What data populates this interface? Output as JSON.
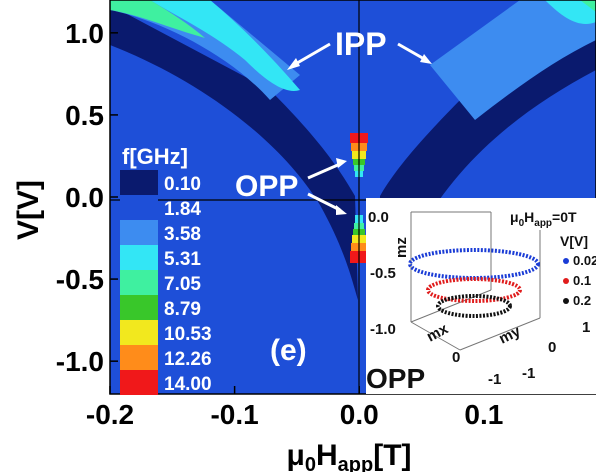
{
  "chart_data": {
    "type": "heatmap",
    "xlabel": "μ0Happ[T]",
    "ylabel": "V[V]",
    "xlim": [
      -0.2,
      0.19
    ],
    "ylim": [
      -1.2,
      1.2
    ],
    "x_ticks": [
      "-0.2",
      "-0.1",
      "0.0",
      "0.1"
    ],
    "y_ticks": [
      "1.0",
      "0.5",
      "0.0",
      "-0.5",
      "-1.0"
    ],
    "colorbar": {
      "title": "f[GHz]",
      "levels": [
        "0.10",
        "1.84",
        "3.58",
        "5.31",
        "7.05",
        "8.79",
        "10.53",
        "12.26",
        "14.00"
      ],
      "colors": [
        "#0a1a6e",
        "#1e4fd8",
        "#3d8cf0",
        "#33e6f5",
        "#3ff0a0",
        "#39c72a",
        "#f2e81e",
        "#ff8c1a",
        "#f0181a"
      ]
    },
    "annotations": {
      "ipp": "IPP",
      "opp": "OPP",
      "panel": "(e)"
    },
    "inset": {
      "type": "scatter3d",
      "label": "OPP",
      "field_label": "μ0Happ=0T",
      "legend_title": "V[V]",
      "axes": {
        "x": "mx",
        "y": "my",
        "z": "mz"
      },
      "z_ticks": [
        "0.0",
        "-0.5",
        "-1.0"
      ],
      "x_ticks": [
        "0",
        "-1"
      ],
      "y_ticks": [
        "1",
        "0",
        "-1"
      ],
      "series": [
        {
          "name": "0.02",
          "color": "#1a3cd6",
          "mz": -0.35
        },
        {
          "name": "0.1",
          "color": "#e01c1c",
          "mz": -0.55
        },
        {
          "name": "0.2",
          "color": "#111111",
          "mz": -0.75
        }
      ]
    }
  }
}
